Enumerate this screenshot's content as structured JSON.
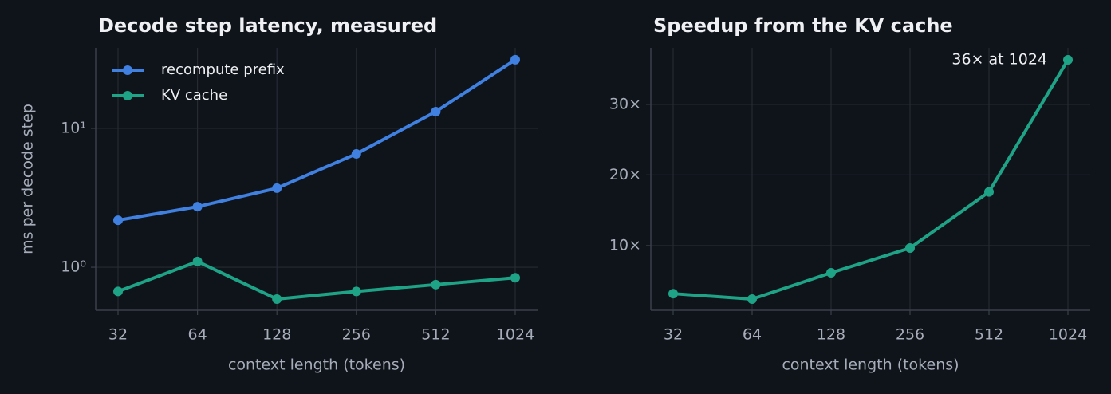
{
  "chart_data": [
    {
      "type": "line",
      "title": "Decode step latency, measured",
      "xlabel": "context length (tokens)",
      "ylabel": "ms per decode step",
      "categories": [
        "32",
        "64",
        "128",
        "256",
        "512",
        "1024"
      ],
      "series": [
        {
          "name": "recompute prefix",
          "color": "#3f80e0",
          "values": [
            2.18,
            2.73,
            3.71,
            6.55,
            13.2,
            31.2
          ]
        },
        {
          "name": "KV cache",
          "color": "#1fa386",
          "values": [
            0.67,
            1.1,
            0.59,
            0.67,
            0.75,
            0.84
          ]
        }
      ],
      "yscale": "log",
      "ylim": [
        0.49,
        38
      ],
      "yticks": [
        {
          "value": 1,
          "label": "10⁰"
        },
        {
          "value": 10,
          "label": "10¹"
        }
      ],
      "grid": true,
      "legend": "upper left"
    },
    {
      "type": "line",
      "title": "Speedup from the KV cache",
      "xlabel": "context length (tokens)",
      "categories": [
        "32",
        "64",
        "128",
        "256",
        "512",
        "1024"
      ],
      "values": [
        3.2,
        2.43,
        6.16,
        9.66,
        17.6,
        36.3
      ],
      "color": "#1fa386",
      "ylim": [
        0.85,
        38
      ],
      "yticks": [
        {
          "value": 10,
          "label": "10×"
        },
        {
          "value": 20,
          "label": "20×"
        },
        {
          "value": 30,
          "label": "30×"
        }
      ],
      "grid": true,
      "annotation": "36× at 1024"
    }
  ]
}
